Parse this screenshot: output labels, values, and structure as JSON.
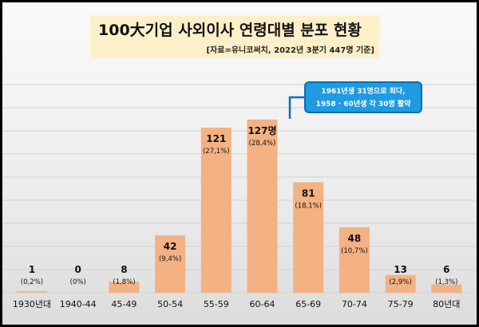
{
  "chart_data": {
    "type": "bar",
    "title": "100大기업 사외이사 연령대별 분포 현황",
    "subtitle": "[자료=유니코써치, 2022년 3분기 447명 기준]",
    "categories": [
      "1930년대",
      "1940-44",
      "45-49",
      "50-54",
      "55-59",
      "60-64",
      "65-69",
      "70-74",
      "75-79",
      "80년대"
    ],
    "values": [
      1,
      0,
      8,
      42,
      121,
      127,
      81,
      48,
      13,
      6
    ],
    "value_labels": [
      "1",
      "0",
      "8",
      "42",
      "121",
      "127명",
      "81",
      "48",
      "13",
      "6"
    ],
    "percent_labels": [
      "(0,2%)",
      "(0%)",
      "(1,8%)",
      "(9,4%)",
      "(27,1%)",
      "(28,4%)",
      "(18,1%)",
      "(10,7%)",
      "(2,9%)",
      "(1,3%)"
    ],
    "xlabel": "",
    "ylabel": "",
    "ylim": [
      0,
      135
    ],
    "grid": true,
    "bar_color": "#f4b183",
    "annotation": {
      "line1": "1961년생 31명으로 최다,",
      "line2": "1958 · 60년생 각 30명 활약",
      "color": "#1e9be2"
    }
  }
}
